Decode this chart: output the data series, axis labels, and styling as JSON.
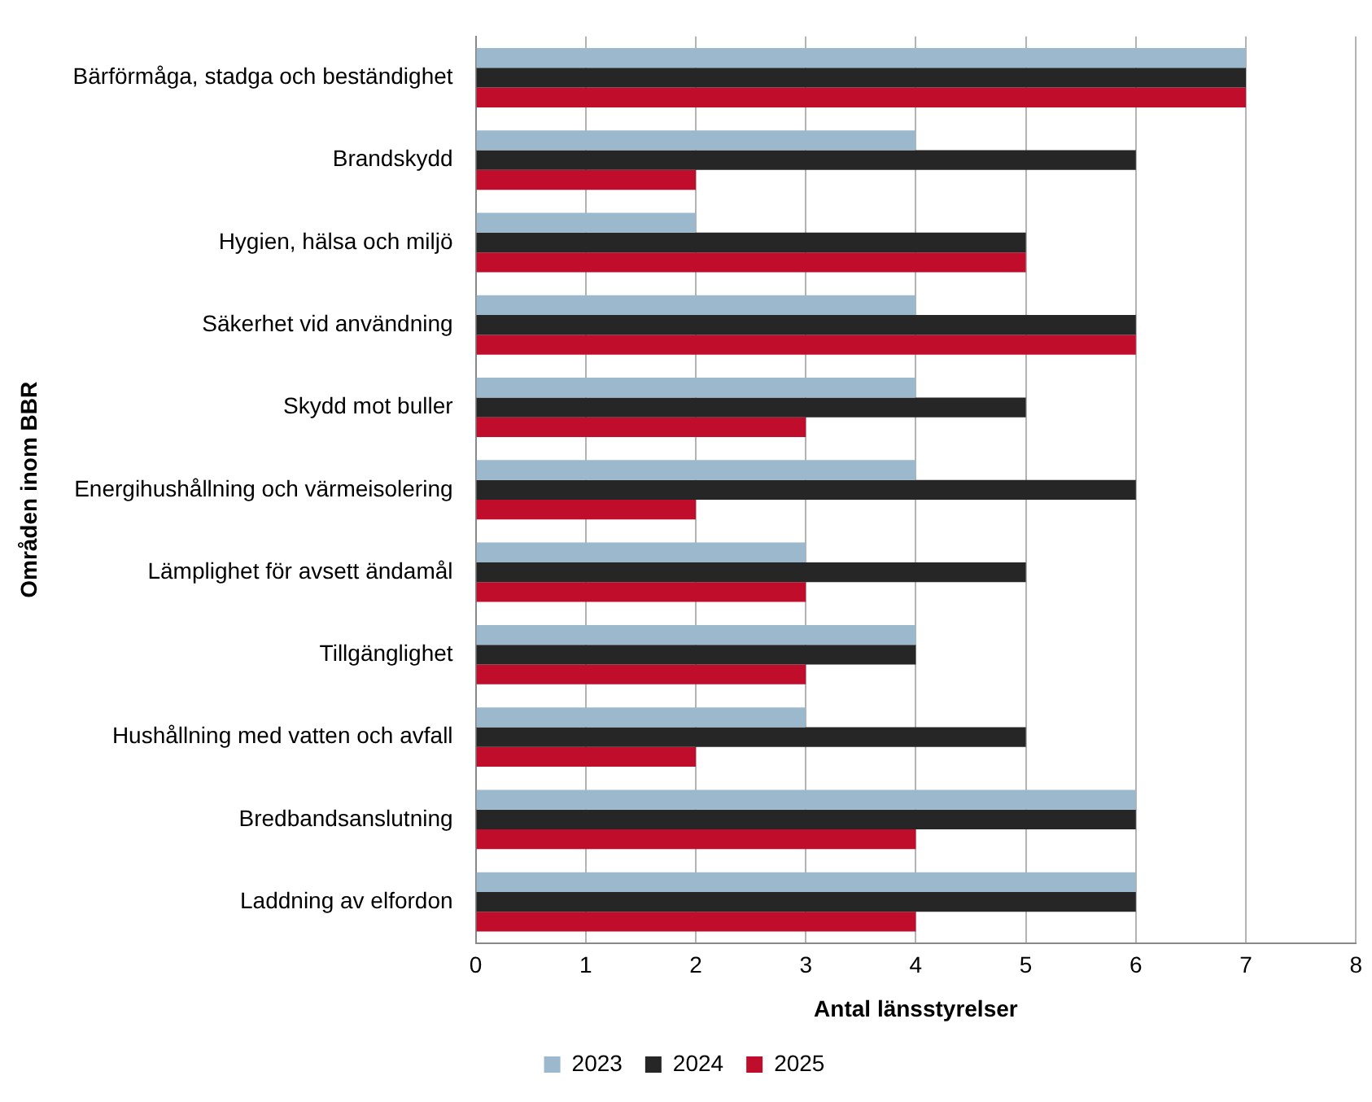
{
  "chart_data": {
    "type": "bar",
    "orientation": "horizontal",
    "xlabel": "Antal länsstyrelser",
    "ylabel": "Områden inom BBR",
    "categories": [
      "Bärförmåga, stadga och beständighet",
      "Brandskydd",
      "Hygien, hälsa och miljö",
      "Säkerhet vid användning",
      "Skydd mot buller",
      "Energihushållning och värmeisolering",
      "Lämplighet för avsett ändamål",
      "Tillgänglighet",
      "Hushållning med vatten och avfall",
      "Bredbandsanslutning",
      "Laddning av elfordon"
    ],
    "series": [
      {
        "name": "2023",
        "color": "#9bb8cd",
        "values": [
          7,
          4,
          2,
          4,
          4,
          4,
          3,
          4,
          3,
          6,
          6
        ]
      },
      {
        "name": "2024",
        "color": "#262626",
        "values": [
          7,
          6,
          5,
          6,
          5,
          6,
          5,
          4,
          5,
          6,
          6
        ]
      },
      {
        "name": "2025",
        "color": "#c00d2b",
        "values": [
          7,
          2,
          5,
          6,
          3,
          2,
          3,
          3,
          2,
          4,
          4
        ]
      }
    ],
    "xlim": [
      0,
      8
    ],
    "xticks": [
      0,
      1,
      2,
      3,
      4,
      5,
      6,
      7,
      8
    ],
    "grid": "x",
    "legend": "bottom"
  }
}
